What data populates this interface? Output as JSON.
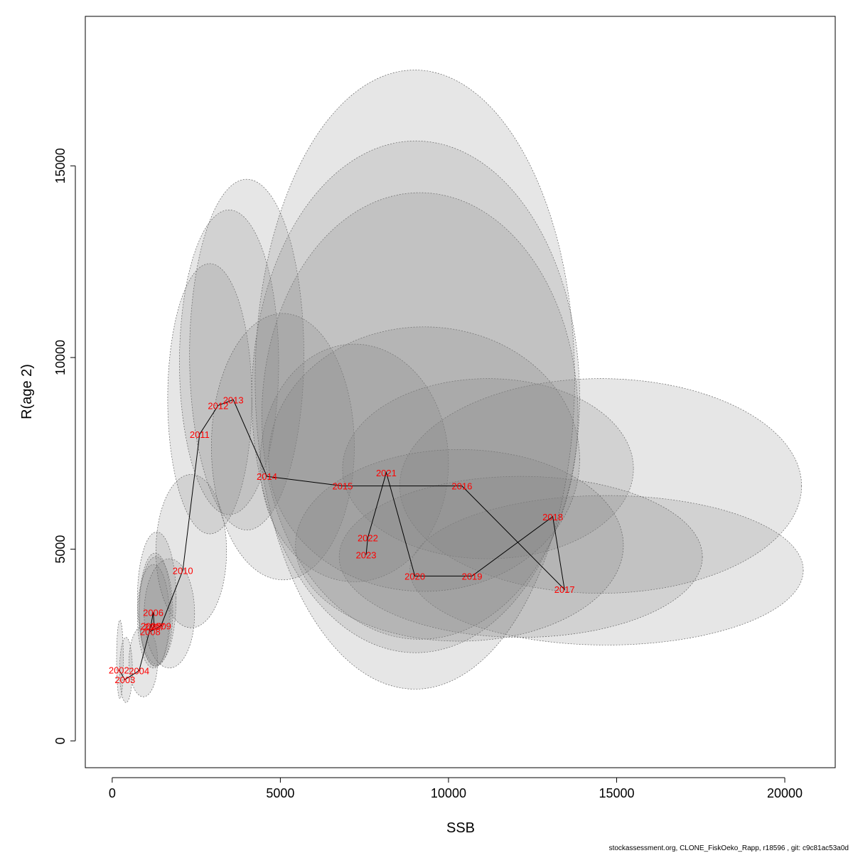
{
  "chart_data": {
    "type": "scatter",
    "title": "",
    "xlabel": "SSB",
    "ylabel": "R(age 2)",
    "xlim": [
      -800,
      21500
    ],
    "ylim": [
      -700,
      18900
    ],
    "xticks": [
      0,
      5000,
      10000,
      15000,
      20000
    ],
    "yticks": [
      0,
      5000,
      10000,
      15000
    ],
    "grid": false,
    "legend": "none",
    "line_color": "#000000",
    "label_color": "#ff0000",
    "ellipse_fill": "rgba(128,128,128,0.2)",
    "ellipse_stroke": "#666666",
    "points": [
      {
        "year": "2002",
        "ssb": 200,
        "r": 1850,
        "ellipse": {
          "xmin": 130,
          "xmax": 330,
          "ymin": 1100,
          "ymax": 3150
        }
      },
      {
        "year": "2003",
        "ssb": 380,
        "r": 1600,
        "ellipse": {
          "xmin": 220,
          "xmax": 600,
          "ymin": 1000,
          "ymax": 2700
        }
      },
      {
        "year": "2004",
        "ssb": 800,
        "r": 1830,
        "ellipse": {
          "xmin": 500,
          "xmax": 1350,
          "ymin": 1150,
          "ymax": 3000
        }
      },
      {
        "year": "2005",
        "ssb": 1150,
        "r": 3000,
        "ellipse": {
          "xmin": 800,
          "xmax": 1750,
          "ymin": 1950,
          "ymax": 4900
        }
      },
      {
        "year": "2006",
        "ssb": 1220,
        "r": 3350,
        "ellipse": {
          "xmin": 750,
          "xmax": 1900,
          "ymin": 2000,
          "ymax": 5450
        }
      },
      {
        "year": "2007",
        "ssb": 1250,
        "r": 2980,
        "ellipse": {
          "xmin": 800,
          "xmax": 1800,
          "ymin": 1950,
          "ymax": 4800
        }
      },
      {
        "year": "2008",
        "ssb": 1130,
        "r": 2850,
        "ellipse": {
          "xmin": 750,
          "xmax": 1700,
          "ymin": 1900,
          "ymax": 4600
        }
      },
      {
        "year": "2009",
        "ssb": 1450,
        "r": 3000,
        "ellipse": {
          "xmin": 950,
          "xmax": 2450,
          "ymin": 1900,
          "ymax": 4750
        }
      },
      {
        "year": "2010",
        "ssb": 2100,
        "r": 4450,
        "ellipse": {
          "xmin": 1300,
          "xmax": 3400,
          "ymin": 2950,
          "ymax": 6950
        }
      },
      {
        "year": "2011",
        "ssb": 2600,
        "r": 8000,
        "ellipse": {
          "xmin": 1650,
          "xmax": 4150,
          "ymin": 5400,
          "ymax": 12450
        }
      },
      {
        "year": "2012",
        "ssb": 3150,
        "r": 8750,
        "ellipse": {
          "xmin": 2000,
          "xmax": 4950,
          "ymin": 5900,
          "ymax": 13850
        }
      },
      {
        "year": "2013",
        "ssb": 3600,
        "r": 8900,
        "ellipse": {
          "xmin": 2300,
          "xmax": 5700,
          "ymin": 5500,
          "ymax": 14650
        }
      },
      {
        "year": "2014",
        "ssb": 4600,
        "r": 6900,
        "ellipse": {
          "xmin": 2950,
          "xmax": 7200,
          "ymin": 4200,
          "ymax": 11150
        }
      },
      {
        "year": "2015",
        "ssb": 6850,
        "r": 6650,
        "ellipse": {
          "xmin": 4400,
          "xmax": 10000,
          "ymin": 4150,
          "ymax": 10350
        }
      },
      {
        "year": "2016",
        "ssb": 10400,
        "r": 6650,
        "ellipse": {
          "xmin": 6850,
          "xmax": 15500,
          "ymin": 4750,
          "ymax": 9450
        }
      },
      {
        "year": "2017",
        "ssb": 13450,
        "r": 3950,
        "ellipse": {
          "xmin": 8850,
          "xmax": 20550,
          "ymin": 2500,
          "ymax": 6400
        }
      },
      {
        "year": "2018",
        "ssb": 13100,
        "r": 5850,
        "ellipse": {
          "xmin": 8550,
          "xmax": 20500,
          "ymin": 3850,
          "ymax": 9450
        }
      },
      {
        "year": "2019",
        "ssb": 10700,
        "r": 4300,
        "ellipse": {
          "xmin": 6750,
          "xmax": 17550,
          "ymin": 2700,
          "ymax": 6900
        }
      },
      {
        "year": "2020",
        "ssb": 9000,
        "r": 4300,
        "ellipse": {
          "xmin": 5450,
          "xmax": 15200,
          "ymin": 2600,
          "ymax": 7600
        }
      },
      {
        "year": "2021",
        "ssb": 8150,
        "r": 7000,
        "ellipse": {
          "xmin": 4650,
          "xmax": 13900,
          "ymin": 3900,
          "ymax": 10800
        }
      },
      {
        "year": "2022",
        "ssb": 7600,
        "r": 5300,
        "ellipse": {
          "xmin": 4450,
          "xmax": 13850,
          "ymin": 2650,
          "ymax": 14300
        }
      },
      {
        "year": "2023",
        "ssb": 7550,
        "r": 4850,
        "ellipse": {
          "xmin": 4150,
          "xmax": 13900,
          "ymin": 2300,
          "ymax": 15650
        }
      },
      {
        "year": "",
        "ssb": 8000,
        "r": 5000,
        "ellipse": {
          "xmin": 4250,
          "xmax": 13750,
          "ymin": 1350,
          "ymax": 17500
        }
      }
    ]
  },
  "footer": "stockassessment.org, CLONE_FiskOeko_Rapp, r18596 , git: c9c81ac53a0d"
}
